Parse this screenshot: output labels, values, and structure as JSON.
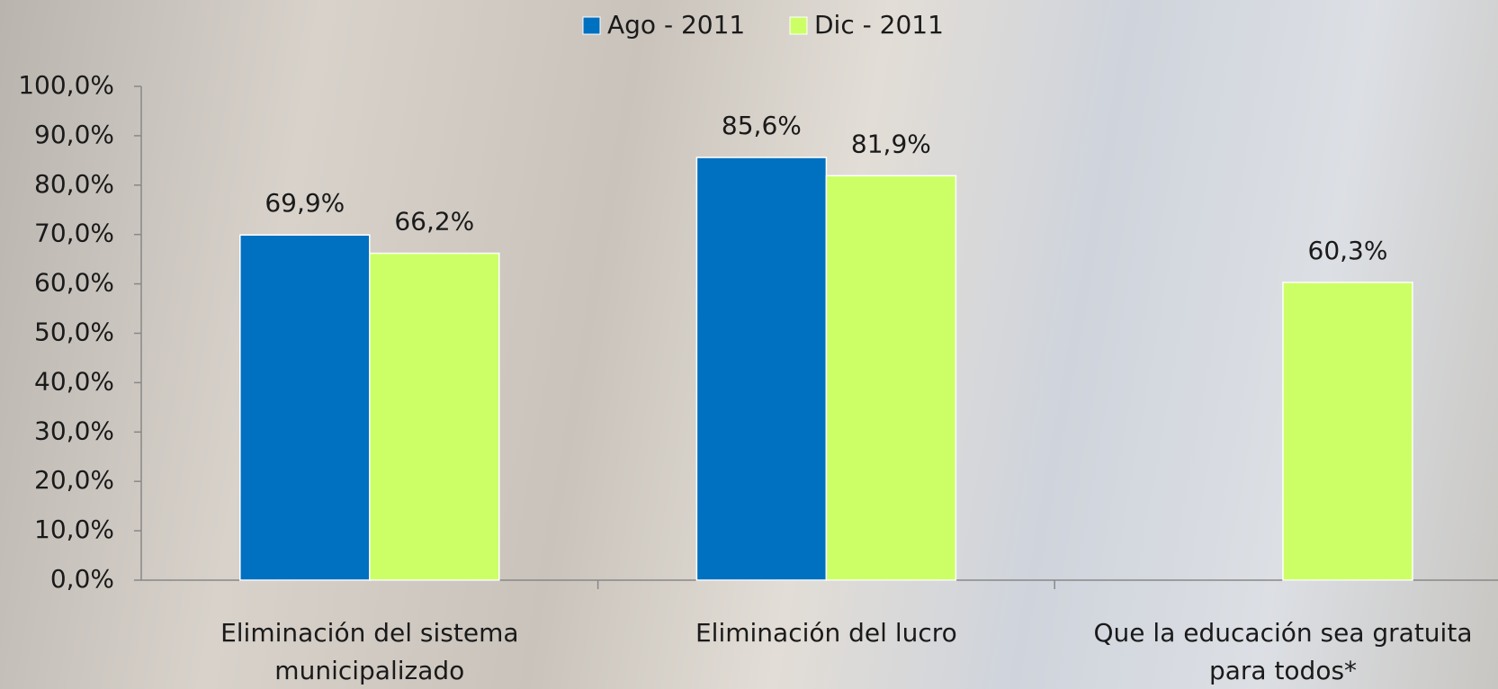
{
  "chart_data": {
    "type": "bar",
    "categories": [
      "Eliminación del sistema municipalizado",
      "Eliminación del lucro",
      "Que la educación sea gratuita para todos*"
    ],
    "series": [
      {
        "name": "Ago - 2011",
        "color": "#0070c0",
        "values": [
          69.9,
          85.6,
          null
        ],
        "value_labels": [
          "69,9%",
          "85,6%",
          null
        ]
      },
      {
        "name": "Dic - 2011",
        "color": "#ccff66",
        "values": [
          66.2,
          81.9,
          60.3
        ],
        "value_labels": [
          "66,2%",
          "81,9%",
          "60,3%"
        ]
      }
    ],
    "ylim": [
      0,
      100
    ],
    "yticks": [
      {
        "value": 0,
        "label": "0,0%"
      },
      {
        "value": 10,
        "label": "10,0%"
      },
      {
        "value": 20,
        "label": "20,0%"
      },
      {
        "value": 30,
        "label": "30,0%"
      },
      {
        "value": 40,
        "label": "40,0%"
      },
      {
        "value": 50,
        "label": "50,0%"
      },
      {
        "value": 60,
        "label": "60,0%"
      },
      {
        "value": 70,
        "label": "70,0%"
      },
      {
        "value": 80,
        "label": "80,0%"
      },
      {
        "value": 90,
        "label": "90,0%"
      },
      {
        "value": 100,
        "label": "100,0%"
      }
    ],
    "legend": "top",
    "grid": false
  }
}
